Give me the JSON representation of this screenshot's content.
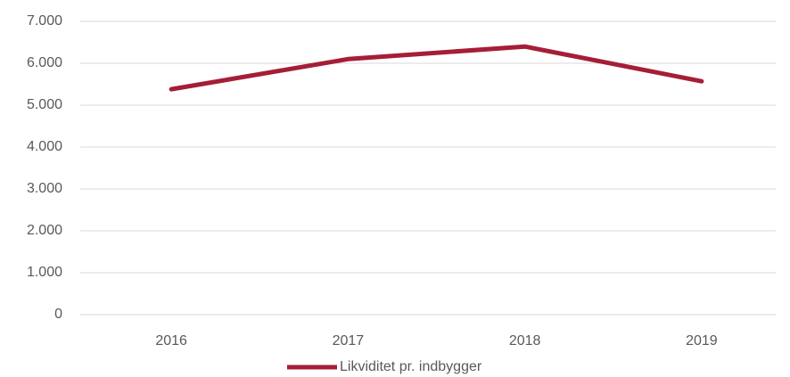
{
  "chart_data": {
    "type": "line",
    "categories": [
      "2016",
      "2017",
      "2018",
      "2019"
    ],
    "series": [
      {
        "name": "Likviditet pr. indbygger",
        "color": "#a51e36",
        "values": [
          5380,
          6100,
          6400,
          5570
        ]
      }
    ],
    "ylim": [
      0,
      7000
    ],
    "yticks": [
      0,
      {
        "value": 1000,
        "label": "1.000"
      },
      {
        "value": 2000,
        "label": "2.000"
      },
      {
        "value": 3000,
        "label": "3.000"
      },
      {
        "value": 4000,
        "label": "4.000"
      },
      {
        "value": 5000,
        "label": "5.000"
      },
      {
        "value": 6000,
        "label": "6.000"
      },
      {
        "value": 7000,
        "label": "7.000"
      }
    ],
    "grid": true,
    "legend": "bottom"
  }
}
